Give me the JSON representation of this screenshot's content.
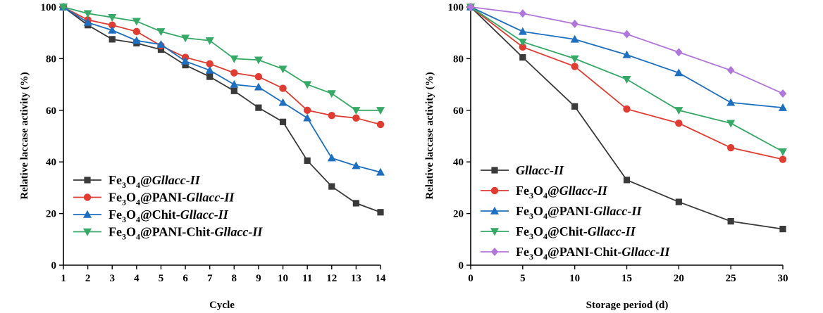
{
  "chart_data": [
    {
      "type": "line",
      "xlabel": "Cycle",
      "ylabel": "Relative laccase activity (%)",
      "xlim": [
        1,
        14
      ],
      "ylim": [
        0,
        100
      ],
      "xticks": [
        1,
        2,
        3,
        4,
        5,
        6,
        7,
        8,
        9,
        10,
        11,
        12,
        13,
        14
      ],
      "yticks": [
        0,
        20,
        40,
        60,
        80,
        100
      ],
      "x": [
        1,
        2,
        3,
        4,
        5,
        6,
        7,
        8,
        9,
        10,
        11,
        12,
        13,
        14
      ],
      "legend_position": "bottom-left",
      "series": [
        {
          "name": "Fe3O4@Gllacc-II",
          "legend": [
            "Fe",
            "3",
            "O",
            "4",
            "@",
            "Gllacc-II"
          ],
          "color": "#3a3a3a",
          "marker": "square",
          "values": [
            100,
            93,
            87.5,
            86,
            83.5,
            77.5,
            73,
            67.5,
            61,
            55.5,
            40.5,
            30.5,
            24,
            20.5
          ]
        },
        {
          "name": "Fe3O4@PANI-Gllacc-II",
          "legend": [
            "Fe",
            "3",
            "O",
            "4",
            "@PANI-",
            "Gllacc-II"
          ],
          "color": "#e03c31",
          "marker": "circle",
          "values": [
            100,
            95,
            93,
            90.5,
            85,
            80.5,
            78,
            74.5,
            73,
            68.5,
            60,
            58,
            57,
            54.5
          ]
        },
        {
          "name": "Fe3O4@Chit-Gllacc-II",
          "legend": [
            "Fe",
            "3",
            "O",
            "4",
            "@Chit-",
            "Gllacc-II"
          ],
          "color": "#1e6fc0",
          "marker": "triangle-up",
          "values": [
            100,
            94,
            91,
            87,
            85.5,
            79,
            75.5,
            70,
            69,
            63,
            57,
            41.5,
            38.5,
            36
          ]
        },
        {
          "name": "Fe3O4@PANI-Chit-Gllacc-II",
          "legend": [
            "Fe",
            "3",
            "O",
            "4",
            "@PANI-Chit-",
            "Gllacc-II"
          ],
          "color": "#35a965",
          "marker": "triangle-down",
          "values": [
            100,
            97.5,
            96,
            94.5,
            90.5,
            88,
            87,
            80,
            79.5,
            76,
            70,
            66.5,
            60,
            60
          ]
        }
      ]
    },
    {
      "type": "line",
      "xlabel": "Storage period (d)",
      "ylabel": "Relative laccase activity (%)",
      "xlim": [
        0,
        30
      ],
      "ylim": [
        0,
        100
      ],
      "xticks": [
        0,
        5,
        10,
        15,
        20,
        25,
        30
      ],
      "yticks": [
        0,
        20,
        40,
        60,
        80,
        100
      ],
      "x": [
        0,
        5,
        10,
        15,
        20,
        25,
        30
      ],
      "legend_position": "bottom-left",
      "series": [
        {
          "name": "Gllacc-II",
          "legend": [
            "",
            "",
            "",
            "",
            "",
            "Gllacc-II"
          ],
          "color": "#3a3a3a",
          "marker": "square",
          "values": [
            100,
            80.5,
            61.5,
            33,
            24.5,
            17,
            14
          ]
        },
        {
          "name": "Fe3O4@Gllacc-II",
          "legend": [
            "Fe",
            "3",
            "O",
            "4",
            "@",
            "Gllacc-II"
          ],
          "color": "#e03c31",
          "marker": "circle",
          "values": [
            100,
            84.5,
            77,
            60.5,
            55,
            45.5,
            41
          ]
        },
        {
          "name": "Fe3O4@PANI-Gllacc-II",
          "legend": [
            "Fe",
            "3",
            "O",
            "4",
            "@PANI-",
            "Gllacc-II"
          ],
          "color": "#1e6fc0",
          "marker": "triangle-up",
          "values": [
            100,
            90.5,
            87.5,
            81.5,
            74.5,
            63,
            61
          ]
        },
        {
          "name": "Fe3O4@Chit-Gllacc-II",
          "legend": [
            "Fe",
            "3",
            "O",
            "4",
            "@Chit-",
            "Gllacc-II"
          ],
          "color": "#35a965",
          "marker": "triangle-down",
          "values": [
            100,
            86.5,
            80,
            72,
            60,
            55,
            44
          ]
        },
        {
          "name": "Fe3O4@PANI-Chit-Gllacc-II",
          "legend": [
            "Fe",
            "3",
            "O",
            "4",
            "@PANI-Chit-",
            "Gllacc-II"
          ],
          "color": "#b076db",
          "marker": "diamond",
          "values": [
            100,
            97.5,
            93.5,
            89.5,
            82.5,
            75.5,
            66.5
          ]
        }
      ]
    }
  ]
}
